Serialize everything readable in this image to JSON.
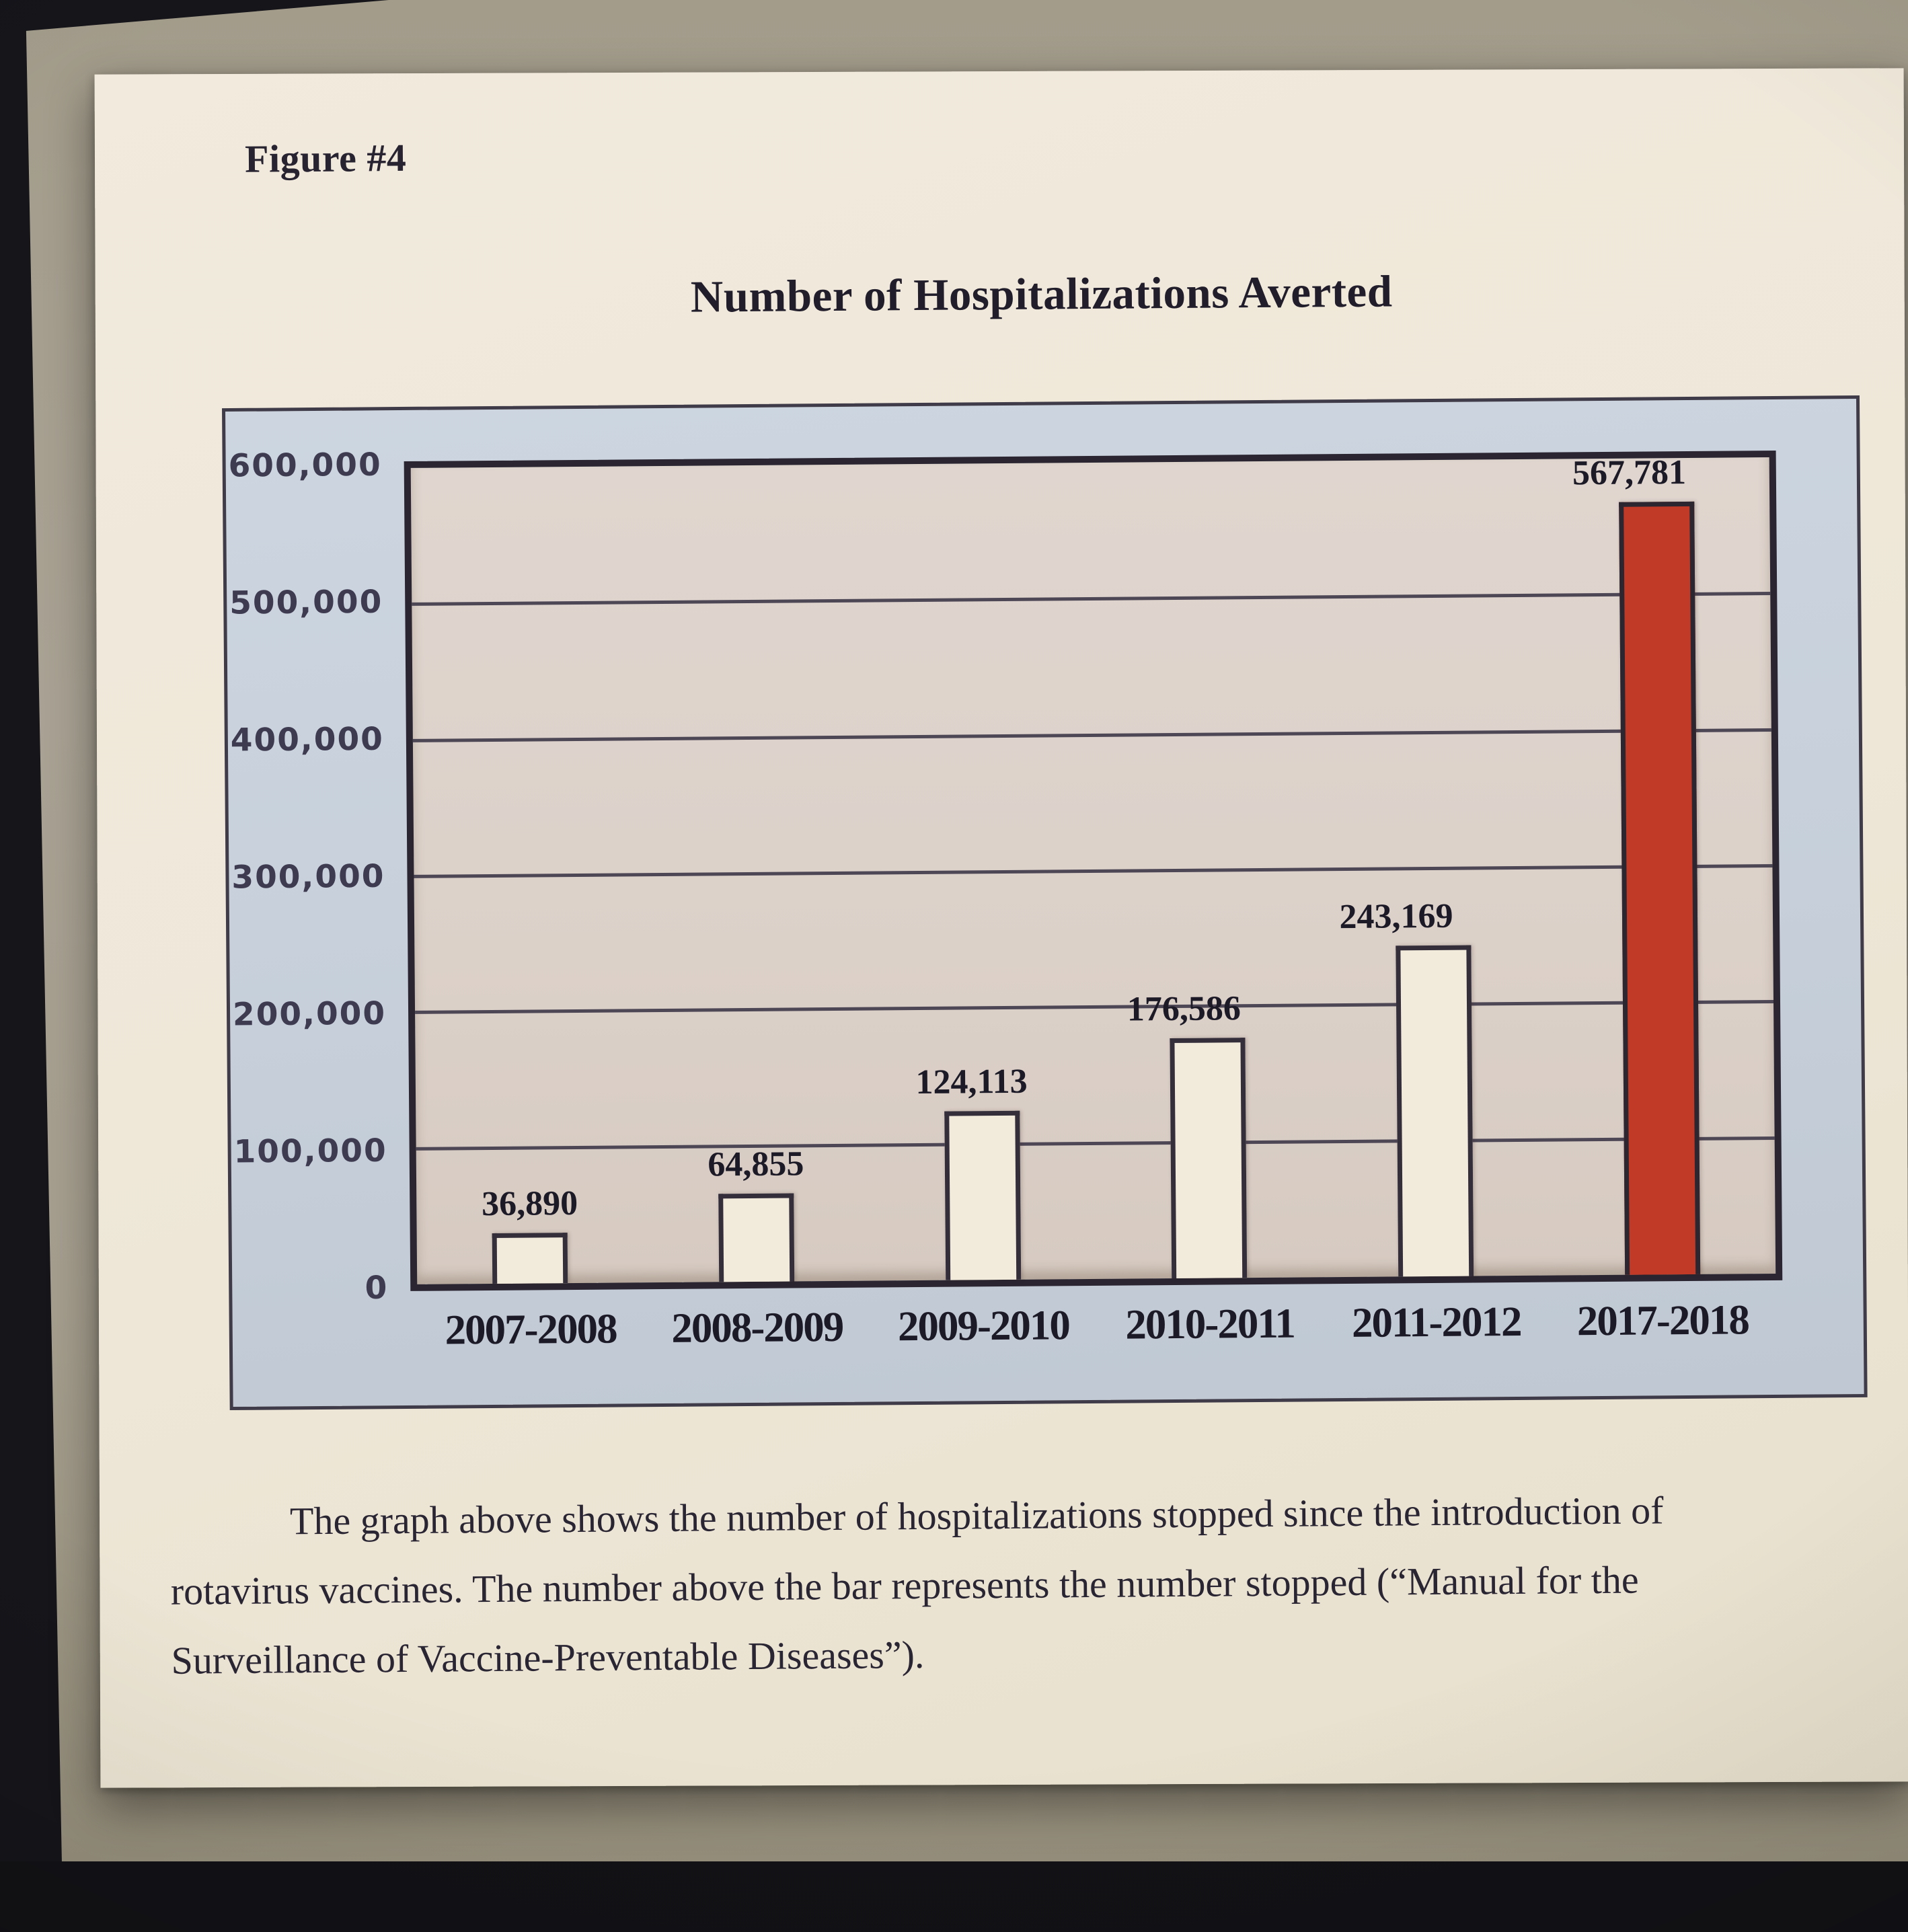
{
  "figure_label": "Figure #4",
  "chart_title": "Number of Hospitalizations Averted",
  "caption": {
    "line1": "The graph above shows the number of hospitalizations stopped since the introduction of",
    "line2": "rotavirus vaccines. The number above the bar represents the number stopped (“Manual for the",
    "line3": "Surveillance of Vaccine-Preventable Diseases”)."
  },
  "chart_data": {
    "type": "bar",
    "title": "Number of Hospitalizations Averted",
    "categories": [
      "2007-2008",
      "2008-2009",
      "2009-2010",
      "2010-2011",
      "2011-2012",
      "2017-2018"
    ],
    "values": [
      36890,
      64855,
      124113,
      176586,
      243169,
      567781
    ],
    "value_labels": [
      "36,890",
      "64,855",
      "124,113",
      "176,586",
      "243,169",
      "567,781"
    ],
    "y_tick_labels": [
      "600,000",
      "500,000",
      "400,000",
      "300,000",
      "200,000",
      "100,000",
      "0"
    ],
    "ylim": [
      0,
      600000
    ],
    "grid": true,
    "legend": "none",
    "highlight_index": 5,
    "bar_color": "#f2ebdb",
    "highlight_color": "#c13a27",
    "plot_bg": "#dcd1c9",
    "chart_bg": "#c6cfda",
    "gridline_color": "#4d4655",
    "frame_color": "#2a2531",
    "label_color": "#1d1a27"
  }
}
